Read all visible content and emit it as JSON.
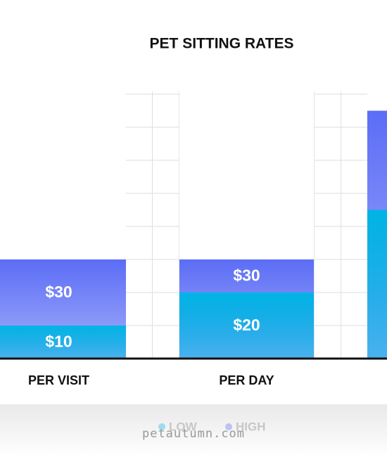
{
  "chart_data": {
    "type": "bar",
    "title": "PET SITTING RATES",
    "categories": [
      "PER VISIT",
      "PER DAY",
      null
    ],
    "series": [
      {
        "name": "HIGH",
        "color": "#5b6df6",
        "values": [
          30,
          30,
          75
        ],
        "value_labels": [
          "$30",
          "$30",
          null
        ]
      },
      {
        "name": "LOW",
        "color": "#00b4e4",
        "values": [
          10,
          20,
          45
        ],
        "value_labels": [
          "$10",
          "$20",
          null
        ]
      }
    ],
    "ylim": [
      0,
      80
    ],
    "yticks": [
      0,
      10,
      20,
      30,
      40,
      50,
      60,
      70,
      80
    ],
    "grid": true,
    "legend": "bottom"
  },
  "watermark": "petautumn.com"
}
